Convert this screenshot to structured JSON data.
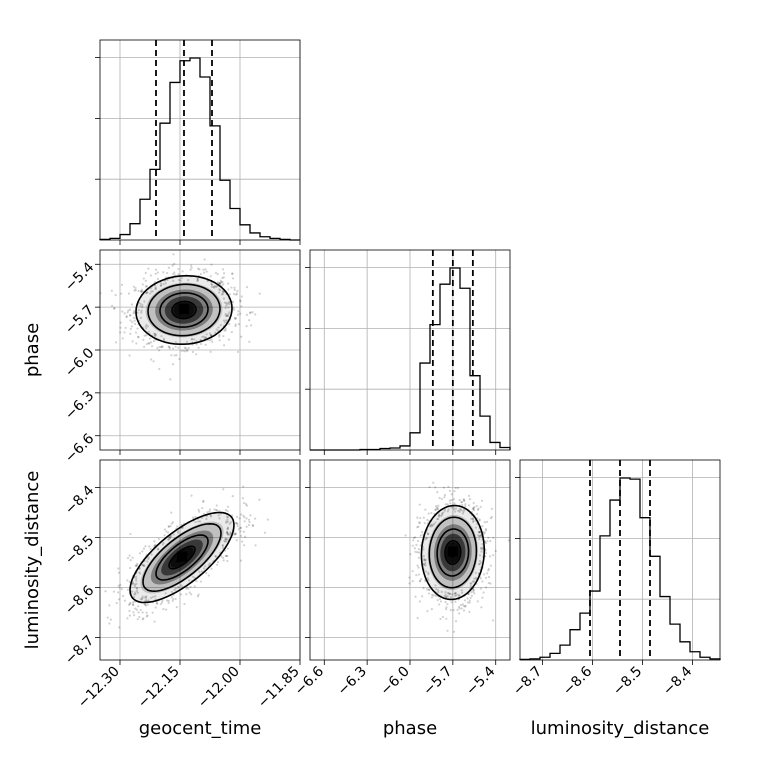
{
  "chart_data": {
    "type": "corner",
    "parameters": [
      {
        "name": "geocent_time",
        "label": "geocent_time",
        "range": [
          -12.35,
          -11.85
        ],
        "ticks": [
          -12.3,
          -12.15,
          -12.0,
          -11.85
        ],
        "tick_labels": [
          "−12.30",
          "−12.15",
          "−12.00",
          "−11.85"
        ],
        "median": -12.14,
        "q16": -12.21,
        "q84": -12.07,
        "hist_counts": [
          1,
          3,
          10,
          30,
          75,
          130,
          215,
          290,
          330,
          335,
          300,
          210,
          110,
          58,
          28,
          13,
          6,
          3,
          1,
          0
        ]
      },
      {
        "name": "phase",
        "label": "phase",
        "range": [
          -6.7,
          -5.3
        ],
        "ticks": [
          -6.6,
          -6.3,
          -6.0,
          -5.7,
          -5.4
        ],
        "tick_labels": [
          "−6.6",
          "−6.3",
          "−6.0",
          "−5.7",
          "−5.4"
        ],
        "median": -5.7,
        "q16": -5.84,
        "q84": -5.56,
        "hist_counts": [
          0,
          0,
          0,
          0,
          0,
          1,
          1,
          3,
          4,
          8,
          34,
          172,
          248,
          328,
          360,
          320,
          147,
          67,
          15,
          5
        ]
      },
      {
        "name": "luminosity_distance",
        "label": "luminosity_distance",
        "range": [
          -8.745,
          -8.345
        ],
        "ticks": [
          -8.7,
          -8.6,
          -8.5,
          -8.4
        ],
        "tick_labels": [
          "−8.7",
          "−8.6",
          "−8.5",
          "−8.4"
        ],
        "median": -8.545,
        "q16": -8.605,
        "q84": -8.485,
        "hist_counts": [
          1,
          2,
          5,
          12,
          27,
          55,
          85,
          125,
          225,
          290,
          330,
          328,
          258,
          188,
          115,
          65,
          33,
          15,
          5,
          2
        ]
      }
    ],
    "pairs": [
      {
        "x": "geocent_time",
        "y": "phase",
        "center": [
          -12.14,
          -5.72
        ],
        "spread": [
          0.06,
          0.12
        ],
        "corr": 0.05,
        "orientation": 0
      },
      {
        "x": "geocent_time",
        "y": "luminosity_distance",
        "center": [
          -12.145,
          -8.54
        ],
        "spread": [
          0.065,
          0.045
        ],
        "corr": 0.72,
        "orientation": 0
      },
      {
        "x": "phase",
        "y": "luminosity_distance",
        "center": [
          -5.7,
          -8.53
        ],
        "spread": [
          0.11,
          0.047
        ],
        "corr": 0.05,
        "orientation": 0
      }
    ],
    "contour_levels": [
      0.118,
      0.393,
      0.675,
      0.865
    ],
    "grid": true,
    "quantile_lines": "dashed"
  }
}
